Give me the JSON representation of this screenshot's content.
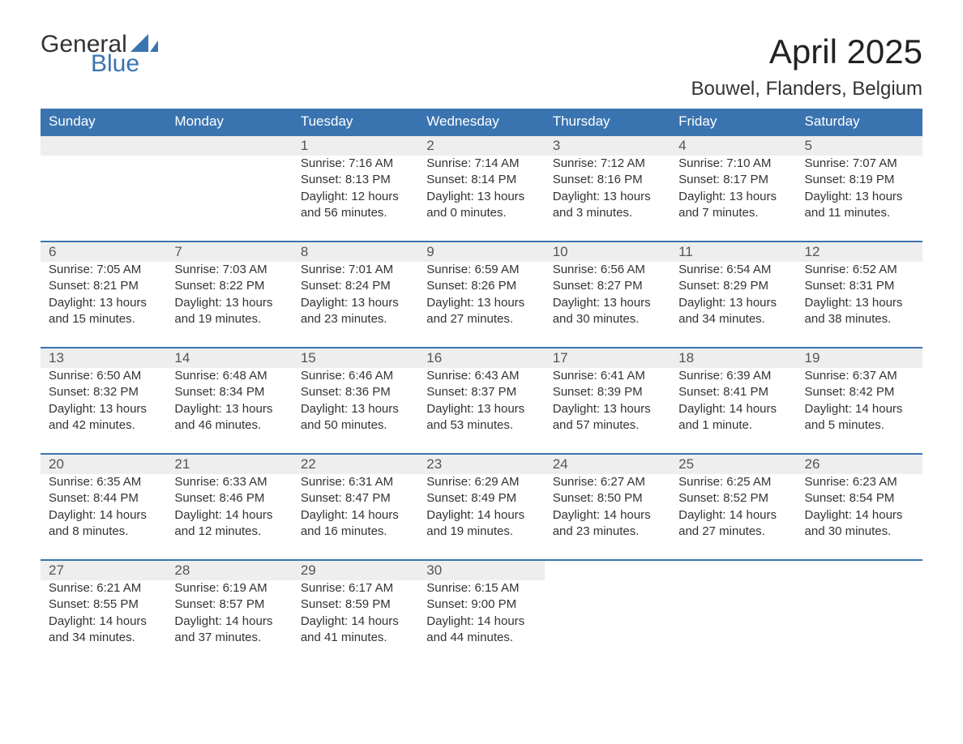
{
  "brand": {
    "general": "General",
    "blue": "Blue",
    "logo_color": "#3a74b0"
  },
  "title": "April 2025",
  "location": "Bouwel, Flanders, Belgium",
  "colors": {
    "header_bg": "#3a74b0",
    "header_text": "#ffffff",
    "daynum_bg": "#eeeeee",
    "daynum_border": "#3a74b0",
    "text": "#333333",
    "page_bg": "#ffffff"
  },
  "weekdays": [
    "Sunday",
    "Monday",
    "Tuesday",
    "Wednesday",
    "Thursday",
    "Friday",
    "Saturday"
  ],
  "weeks": [
    [
      null,
      null,
      {
        "day": "1",
        "sunrise": "Sunrise: 7:16 AM",
        "sunset": "Sunset: 8:13 PM",
        "daylight": "Daylight: 12 hours and 56 minutes."
      },
      {
        "day": "2",
        "sunrise": "Sunrise: 7:14 AM",
        "sunset": "Sunset: 8:14 PM",
        "daylight": "Daylight: 13 hours and 0 minutes."
      },
      {
        "day": "3",
        "sunrise": "Sunrise: 7:12 AM",
        "sunset": "Sunset: 8:16 PM",
        "daylight": "Daylight: 13 hours and 3 minutes."
      },
      {
        "day": "4",
        "sunrise": "Sunrise: 7:10 AM",
        "sunset": "Sunset: 8:17 PM",
        "daylight": "Daylight: 13 hours and 7 minutes."
      },
      {
        "day": "5",
        "sunrise": "Sunrise: 7:07 AM",
        "sunset": "Sunset: 8:19 PM",
        "daylight": "Daylight: 13 hours and 11 minutes."
      }
    ],
    [
      {
        "day": "6",
        "sunrise": "Sunrise: 7:05 AM",
        "sunset": "Sunset: 8:21 PM",
        "daylight": "Daylight: 13 hours and 15 minutes."
      },
      {
        "day": "7",
        "sunrise": "Sunrise: 7:03 AM",
        "sunset": "Sunset: 8:22 PM",
        "daylight": "Daylight: 13 hours and 19 minutes."
      },
      {
        "day": "8",
        "sunrise": "Sunrise: 7:01 AM",
        "sunset": "Sunset: 8:24 PM",
        "daylight": "Daylight: 13 hours and 23 minutes."
      },
      {
        "day": "9",
        "sunrise": "Sunrise: 6:59 AM",
        "sunset": "Sunset: 8:26 PM",
        "daylight": "Daylight: 13 hours and 27 minutes."
      },
      {
        "day": "10",
        "sunrise": "Sunrise: 6:56 AM",
        "sunset": "Sunset: 8:27 PM",
        "daylight": "Daylight: 13 hours and 30 minutes."
      },
      {
        "day": "11",
        "sunrise": "Sunrise: 6:54 AM",
        "sunset": "Sunset: 8:29 PM",
        "daylight": "Daylight: 13 hours and 34 minutes."
      },
      {
        "day": "12",
        "sunrise": "Sunrise: 6:52 AM",
        "sunset": "Sunset: 8:31 PM",
        "daylight": "Daylight: 13 hours and 38 minutes."
      }
    ],
    [
      {
        "day": "13",
        "sunrise": "Sunrise: 6:50 AM",
        "sunset": "Sunset: 8:32 PM",
        "daylight": "Daylight: 13 hours and 42 minutes."
      },
      {
        "day": "14",
        "sunrise": "Sunrise: 6:48 AM",
        "sunset": "Sunset: 8:34 PM",
        "daylight": "Daylight: 13 hours and 46 minutes."
      },
      {
        "day": "15",
        "sunrise": "Sunrise: 6:46 AM",
        "sunset": "Sunset: 8:36 PM",
        "daylight": "Daylight: 13 hours and 50 minutes."
      },
      {
        "day": "16",
        "sunrise": "Sunrise: 6:43 AM",
        "sunset": "Sunset: 8:37 PM",
        "daylight": "Daylight: 13 hours and 53 minutes."
      },
      {
        "day": "17",
        "sunrise": "Sunrise: 6:41 AM",
        "sunset": "Sunset: 8:39 PM",
        "daylight": "Daylight: 13 hours and 57 minutes."
      },
      {
        "day": "18",
        "sunrise": "Sunrise: 6:39 AM",
        "sunset": "Sunset: 8:41 PM",
        "daylight": "Daylight: 14 hours and 1 minute."
      },
      {
        "day": "19",
        "sunrise": "Sunrise: 6:37 AM",
        "sunset": "Sunset: 8:42 PM",
        "daylight": "Daylight: 14 hours and 5 minutes."
      }
    ],
    [
      {
        "day": "20",
        "sunrise": "Sunrise: 6:35 AM",
        "sunset": "Sunset: 8:44 PM",
        "daylight": "Daylight: 14 hours and 8 minutes."
      },
      {
        "day": "21",
        "sunrise": "Sunrise: 6:33 AM",
        "sunset": "Sunset: 8:46 PM",
        "daylight": "Daylight: 14 hours and 12 minutes."
      },
      {
        "day": "22",
        "sunrise": "Sunrise: 6:31 AM",
        "sunset": "Sunset: 8:47 PM",
        "daylight": "Daylight: 14 hours and 16 minutes."
      },
      {
        "day": "23",
        "sunrise": "Sunrise: 6:29 AM",
        "sunset": "Sunset: 8:49 PM",
        "daylight": "Daylight: 14 hours and 19 minutes."
      },
      {
        "day": "24",
        "sunrise": "Sunrise: 6:27 AM",
        "sunset": "Sunset: 8:50 PM",
        "daylight": "Daylight: 14 hours and 23 minutes."
      },
      {
        "day": "25",
        "sunrise": "Sunrise: 6:25 AM",
        "sunset": "Sunset: 8:52 PM",
        "daylight": "Daylight: 14 hours and 27 minutes."
      },
      {
        "day": "26",
        "sunrise": "Sunrise: 6:23 AM",
        "sunset": "Sunset: 8:54 PM",
        "daylight": "Daylight: 14 hours and 30 minutes."
      }
    ],
    [
      {
        "day": "27",
        "sunrise": "Sunrise: 6:21 AM",
        "sunset": "Sunset: 8:55 PM",
        "daylight": "Daylight: 14 hours and 34 minutes."
      },
      {
        "day": "28",
        "sunrise": "Sunrise: 6:19 AM",
        "sunset": "Sunset: 8:57 PM",
        "daylight": "Daylight: 14 hours and 37 minutes."
      },
      {
        "day": "29",
        "sunrise": "Sunrise: 6:17 AM",
        "sunset": "Sunset: 8:59 PM",
        "daylight": "Daylight: 14 hours and 41 minutes."
      },
      {
        "day": "30",
        "sunrise": "Sunrise: 6:15 AM",
        "sunset": "Sunset: 9:00 PM",
        "daylight": "Daylight: 14 hours and 44 minutes."
      },
      null,
      null,
      null
    ]
  ]
}
